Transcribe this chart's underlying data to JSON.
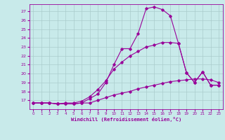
{
  "xlabel": "Windchill (Refroidissement éolien,°C)",
  "bg_color": "#c8eaea",
  "line_color": "#990099",
  "grid_color": "#aacccc",
  "xlim": [
    -0.5,
    23.5
  ],
  "ylim": [
    16,
    27.8
  ],
  "yticks": [
    17,
    18,
    19,
    20,
    21,
    22,
    23,
    24,
    25,
    26,
    27
  ],
  "xticks": [
    0,
    1,
    2,
    3,
    4,
    5,
    6,
    7,
    8,
    9,
    10,
    11,
    12,
    13,
    14,
    15,
    16,
    17,
    18,
    19,
    20,
    21,
    22,
    23
  ],
  "line1_x": [
    0,
    1,
    2,
    3,
    4,
    5,
    6,
    7,
    8,
    9,
    10,
    11,
    12,
    13,
    14,
    15,
    16,
    17,
    18,
    19,
    20,
    21,
    22,
    23
  ],
  "line1_y": [
    16.7,
    16.7,
    16.7,
    16.6,
    16.6,
    16.6,
    16.7,
    17.2,
    17.7,
    19.0,
    21.0,
    22.8,
    22.8,
    24.5,
    27.3,
    27.5,
    27.2,
    26.5,
    23.4,
    20.1,
    19.0,
    20.2,
    18.7,
    18.7
  ],
  "line2_x": [
    0,
    1,
    2,
    3,
    4,
    5,
    6,
    7,
    8,
    9,
    10,
    11,
    12,
    13,
    14,
    15,
    16,
    17,
    18,
    19,
    20,
    21,
    22,
    23
  ],
  "line2_y": [
    16.7,
    16.7,
    16.7,
    16.6,
    16.7,
    16.7,
    16.9,
    17.4,
    18.2,
    19.2,
    20.5,
    21.3,
    22.0,
    22.5,
    23.0,
    23.2,
    23.5,
    23.5,
    23.4,
    20.1,
    19.0,
    20.2,
    18.7,
    18.7
  ],
  "line3_x": [
    0,
    1,
    2,
    3,
    4,
    5,
    6,
    7,
    8,
    9,
    10,
    11,
    12,
    13,
    14,
    15,
    16,
    17,
    18,
    19,
    20,
    21,
    22,
    23
  ],
  "line3_y": [
    16.7,
    16.7,
    16.7,
    16.6,
    16.6,
    16.6,
    16.7,
    16.7,
    17.0,
    17.3,
    17.6,
    17.8,
    18.0,
    18.3,
    18.5,
    18.7,
    18.9,
    19.1,
    19.2,
    19.3,
    19.4,
    19.4,
    19.3,
    19.0
  ]
}
